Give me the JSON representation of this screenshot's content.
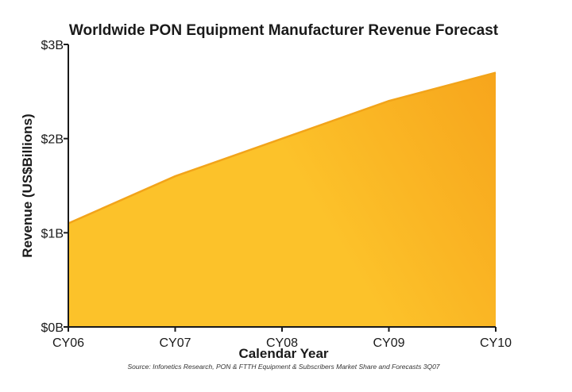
{
  "colors": {
    "fill_top": "#f7a51c",
    "fill_bottom": "#fcc22a",
    "line": "#f2a41a",
    "axis": "#1a1a1a"
  },
  "chart_data": {
    "type": "area",
    "title": "Worldwide PON Equipment Manufacturer Revenue Forecast",
    "xlabel": "Calendar Year",
    "ylabel": "Revenue (US$Billions)",
    "categories": [
      "CY06",
      "CY07",
      "CY08",
      "CY09",
      "CY10"
    ],
    "series": [
      {
        "name": "PON Equipment Manufacturer Revenue",
        "values": [
          1.1,
          1.6,
          2.0,
          2.4,
          2.7
        ]
      }
    ],
    "ylim": [
      0,
      3
    ],
    "yticks": [
      0,
      1,
      2,
      3
    ],
    "ytick_labels": [
      "$0B",
      "$1B",
      "$2B",
      "$3B"
    ],
    "grid": false,
    "legend": "none",
    "source": "Source: Infonetics Research, PON & FTTH Equipment & Subscribers Market Share and Forecasts 3Q07"
  }
}
